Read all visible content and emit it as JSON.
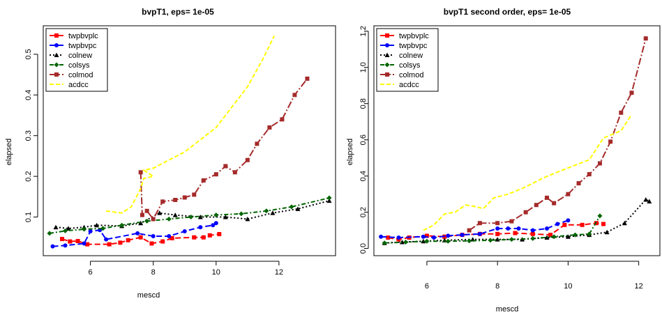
{
  "chart_data": [
    {
      "type": "line",
      "title": "bvpT1, eps= 1e-05",
      "xlabel": "mescd",
      "ylabel": "elapsed",
      "xlim": [
        4.5,
        13.8
      ],
      "ylim": [
        0.005,
        0.57
      ],
      "xticks": [
        6,
        8,
        10,
        12
      ],
      "yticks": [
        0.1,
        0.2,
        0.3,
        0.4,
        0.5
      ],
      "legend_position": "top-left",
      "series": [
        {
          "name": "twpbvplc",
          "color": "#ff0000",
          "dash": "8,4",
          "marker": "square",
          "x": [
            5.1,
            5.35,
            5.6,
            5.9,
            6.6,
            6.95,
            7.2,
            7.6,
            7.95,
            8.3,
            8.6,
            9.3,
            9.6,
            9.8,
            10.1
          ],
          "y": [
            0.046,
            0.04,
            0.041,
            0.033,
            0.033,
            0.037,
            0.043,
            0.05,
            0.035,
            0.04,
            0.048,
            0.05,
            0.05,
            0.055,
            0.058
          ]
        },
        {
          "name": "twpbvpc",
          "color": "#0000ff",
          "dash": "8,4",
          "marker": "circle",
          "x": [
            4.8,
            5.2,
            5.8,
            6.0,
            6.3,
            6.5,
            7.5,
            8.0,
            8.5,
            9.0,
            9.5,
            9.9,
            10.0
          ],
          "y": [
            0.028,
            0.03,
            0.035,
            0.065,
            0.068,
            0.045,
            0.06,
            0.053,
            0.053,
            0.065,
            0.075,
            0.08,
            0.085
          ]
        },
        {
          "name": "colnew",
          "color": "#000000",
          "dash": "2,3",
          "marker": "triangle",
          "x": [
            4.9,
            5.3,
            5.8,
            6.2,
            7.0,
            7.6,
            8.2,
            8.7,
            9.5,
            10.3,
            11.0,
            11.8,
            12.6,
            13.6
          ],
          "y": [
            0.075,
            0.072,
            0.075,
            0.08,
            0.078,
            0.085,
            0.11,
            0.105,
            0.1,
            0.1,
            0.095,
            0.11,
            0.12,
            0.14
          ]
        },
        {
          "name": "colsys",
          "color": "#006400",
          "dash": "6,3,2,3",
          "marker": "diamond",
          "x": [
            4.7,
            5.2,
            5.8,
            6.4,
            7.0,
            7.8,
            8.5,
            9.2,
            10.0,
            10.8,
            11.6,
            12.4,
            13.6
          ],
          "y": [
            0.06,
            0.066,
            0.07,
            0.072,
            0.08,
            0.09,
            0.095,
            0.1,
            0.105,
            0.108,
            0.115,
            0.125,
            0.147
          ]
        },
        {
          "name": "colmod",
          "color": "#a52a2a",
          "dash": "10,3,2,3",
          "marker": "square",
          "x": [
            7.6,
            7.65,
            7.8,
            8.0,
            8.3,
            8.7,
            9.0,
            9.3,
            9.6,
            10.0,
            10.3,
            10.6,
            11.0,
            11.3,
            11.7,
            12.1,
            12.5,
            12.9
          ],
          "y": [
            0.21,
            0.105,
            0.115,
            0.095,
            0.138,
            0.142,
            0.148,
            0.155,
            0.19,
            0.205,
            0.225,
            0.21,
            0.24,
            0.28,
            0.32,
            0.34,
            0.4,
            0.44
          ]
        },
        {
          "name": "acdcc",
          "color": "#ffff00",
          "dash": "6,3",
          "marker": "none",
          "x": [
            6.5,
            7.0,
            7.3,
            7.6,
            7.7,
            8.0,
            7.7,
            8.0,
            8.5,
            9.0,
            9.5,
            10.0,
            10.5,
            11.0,
            11.5,
            11.85
          ],
          "y": [
            0.115,
            0.11,
            0.125,
            0.17,
            0.195,
            0.2,
            0.215,
            0.22,
            0.24,
            0.26,
            0.29,
            0.32,
            0.37,
            0.42,
            0.49,
            0.545
          ]
        }
      ]
    },
    {
      "type": "line",
      "title": "bvpT1 second order, eps= 1e-05",
      "xlabel": "mescd",
      "ylabel": "elapsed",
      "xlim": [
        4.5,
        12.6
      ],
      "ylim": [
        -0.04,
        1.23
      ],
      "xticks": [
        6,
        8,
        10,
        12
      ],
      "yticks": [
        0.0,
        0.2,
        0.4,
        0.6,
        0.8,
        1.0,
        1.2
      ],
      "legend_position": "top-left",
      "series": [
        {
          "name": "twpbvplc",
          "color": "#ff0000",
          "dash": "8,4",
          "marker": "square",
          "x": [
            4.9,
            5.2,
            5.5,
            6.0,
            6.5,
            7.0,
            7.5,
            8.0,
            8.5,
            9.0,
            9.5,
            9.9,
            10.4,
            10.8,
            11.0
          ],
          "y": [
            0.06,
            0.05,
            0.06,
            0.07,
            0.065,
            0.075,
            0.08,
            0.08,
            0.085,
            0.08,
            0.075,
            0.13,
            0.13,
            0.14,
            0.135
          ]
        },
        {
          "name": "twpbvpc",
          "color": "#0000ff",
          "dash": "8,4",
          "marker": "circle",
          "x": [
            4.7,
            5.2,
            5.9,
            6.2,
            6.6,
            7.0,
            7.5,
            8.0,
            8.3,
            8.6,
            9.0,
            9.4,
            9.7,
            10.0
          ],
          "y": [
            0.065,
            0.06,
            0.065,
            0.06,
            0.07,
            0.075,
            0.08,
            0.11,
            0.11,
            0.11,
            0.1,
            0.11,
            0.135,
            0.155
          ]
        },
        {
          "name": "colnew",
          "color": "#000000",
          "dash": "2,3",
          "marker": "triangle",
          "x": [
            4.8,
            5.3,
            5.9,
            6.5,
            7.3,
            8.0,
            8.7,
            9.4,
            10.0,
            10.6,
            11.1,
            11.6,
            12.2,
            12.3
          ],
          "y": [
            0.03,
            0.035,
            0.04,
            0.045,
            0.05,
            0.05,
            0.05,
            0.06,
            0.065,
            0.075,
            0.09,
            0.14,
            0.27,
            0.26
          ]
        },
        {
          "name": "colsys",
          "color": "#006400",
          "dash": "6,3,2,3",
          "marker": "diamond",
          "x": [
            4.8,
            5.4,
            6.0,
            6.6,
            7.2,
            7.8,
            8.4,
            9.0,
            9.6,
            10.2,
            10.6,
            10.9
          ],
          "y": [
            0.03,
            0.035,
            0.04,
            0.04,
            0.042,
            0.045,
            0.05,
            0.055,
            0.065,
            0.075,
            0.08,
            0.18
          ]
        },
        {
          "name": "colmod",
          "color": "#a52a2a",
          "dash": "10,3,2,3",
          "marker": "square",
          "x": [
            7.2,
            7.5,
            8.0,
            8.4,
            8.8,
            9.1,
            9.4,
            9.6,
            10.0,
            10.3,
            10.6,
            10.9,
            11.2,
            11.5,
            11.8,
            12.2
          ],
          "y": [
            0.1,
            0.14,
            0.14,
            0.15,
            0.2,
            0.24,
            0.28,
            0.25,
            0.3,
            0.36,
            0.41,
            0.47,
            0.59,
            0.75,
            0.86,
            1.16
          ]
        },
        {
          "name": "acdcc",
          "color": "#ffff00",
          "dash": "6,3",
          "marker": "none",
          "x": [
            5.9,
            6.2,
            6.5,
            6.8,
            7.1,
            7.4,
            7.6,
            7.9,
            8.3,
            8.8,
            9.3,
            9.8,
            10.2,
            10.6,
            11.0,
            11.5,
            11.8
          ],
          "y": [
            0.1,
            0.13,
            0.19,
            0.2,
            0.24,
            0.23,
            0.22,
            0.28,
            0.3,
            0.34,
            0.39,
            0.43,
            0.46,
            0.49,
            0.61,
            0.65,
            0.74
          ]
        }
      ]
    }
  ]
}
